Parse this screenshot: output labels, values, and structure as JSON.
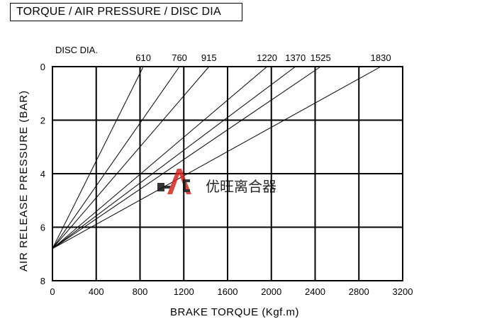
{
  "title": "TORQUE / AIR PRESSURE / DISC DIA",
  "chart_data": {
    "type": "line",
    "legend_label": "DISC DIA.",
    "xlabel": "BRAKE TORQUE (Kgf.m)",
    "ylabel": "AIR RELEASE PRESSURE (BAR)",
    "xlim": [
      0,
      3200
    ],
    "ylim": [
      0,
      8
    ],
    "y_inverted": true,
    "x_ticks": [
      "0",
      "400",
      "800",
      "1200",
      "1600",
      "2000",
      "2400",
      "2800",
      "3200"
    ],
    "y_ticks": [
      "0",
      "2",
      "4",
      "6",
      "8"
    ],
    "grid": true,
    "series": [
      {
        "name": "610",
        "x": [
          0,
          830
        ],
        "y": [
          6.8,
          0
        ]
      },
      {
        "name": "760",
        "x": [
          0,
          1160
        ],
        "y": [
          6.8,
          0
        ]
      },
      {
        "name": "915",
        "x": [
          0,
          1430
        ],
        "y": [
          6.8,
          0
        ]
      },
      {
        "name": "1220",
        "x": [
          0,
          1960
        ],
        "y": [
          6.8,
          0
        ]
      },
      {
        "name": "1370",
        "x": [
          0,
          2220
        ],
        "y": [
          6.8,
          0
        ]
      },
      {
        "name": "1525",
        "x": [
          0,
          2450
        ],
        "y": [
          6.8,
          0
        ]
      },
      {
        "name": "1830",
        "x": [
          0,
          3000
        ],
        "y": [
          6.8,
          0
        ]
      }
    ]
  },
  "watermark": {
    "logo": "HAC",
    "text": "优旺离合器",
    "logo_color": "#d7261e",
    "text_color": "#333333"
  }
}
